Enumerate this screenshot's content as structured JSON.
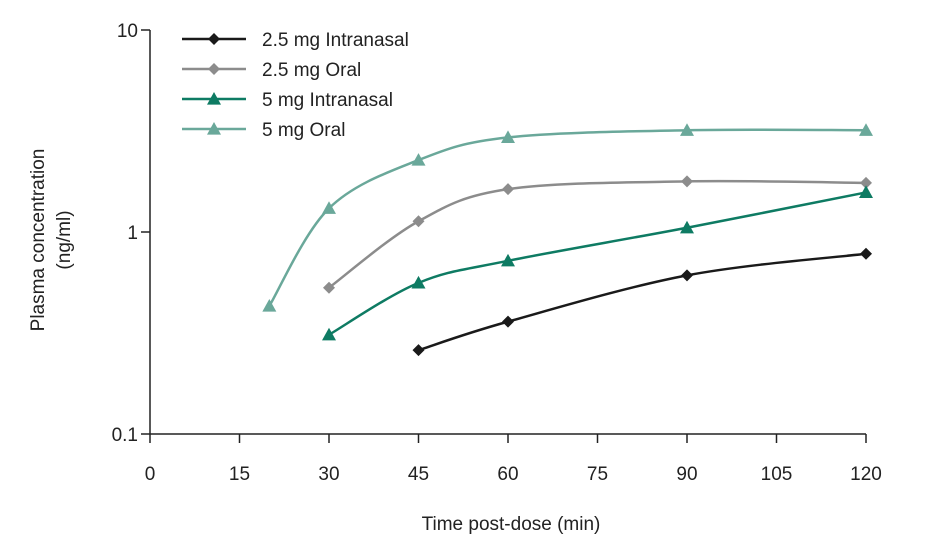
{
  "chart_data": {
    "type": "line",
    "title": "",
    "xlabel": "Time post-dose (min)",
    "ylabel": [
      "Plasma concentration",
      "(ng/ml)"
    ],
    "x_scale": "linear",
    "y_scale": "log",
    "xlim": [
      0,
      120
    ],
    "ylim": [
      0.1,
      10
    ],
    "x_ticks": [
      0,
      15,
      30,
      45,
      60,
      75,
      90,
      105,
      120
    ],
    "y_ticks": [
      {
        "value": 10,
        "label": "10"
      },
      {
        "value": 1,
        "label": "1"
      },
      {
        "value": 0.1,
        "label": "0.1"
      }
    ],
    "grid": false,
    "legend_position": "top-left",
    "series": [
      {
        "name": "2.5 mg Intranasal",
        "color": "#1a1a1a",
        "marker": "diamond",
        "x": [
          45,
          60,
          90,
          120
        ],
        "y": [
          0.26,
          0.36,
          0.61,
          0.78
        ]
      },
      {
        "name": "2.5 mg Oral",
        "color": "#8c8c8c",
        "marker": "diamond",
        "x": [
          30,
          45,
          60,
          90,
          120
        ],
        "y": [
          0.53,
          1.13,
          1.63,
          1.78,
          1.75
        ]
      },
      {
        "name": "5 mg Intranasal",
        "color": "#0e7b63",
        "marker": "triangle",
        "x": [
          30,
          45,
          60,
          90,
          120
        ],
        "y": [
          0.31,
          0.56,
          0.72,
          1.05,
          1.57
        ]
      },
      {
        "name": "5 mg Oral",
        "color": "#6aa89a",
        "marker": "triangle",
        "x": [
          20,
          30,
          45,
          60,
          90,
          120
        ],
        "y": [
          0.43,
          1.31,
          2.27,
          2.94,
          3.19,
          3.19
        ]
      }
    ]
  }
}
